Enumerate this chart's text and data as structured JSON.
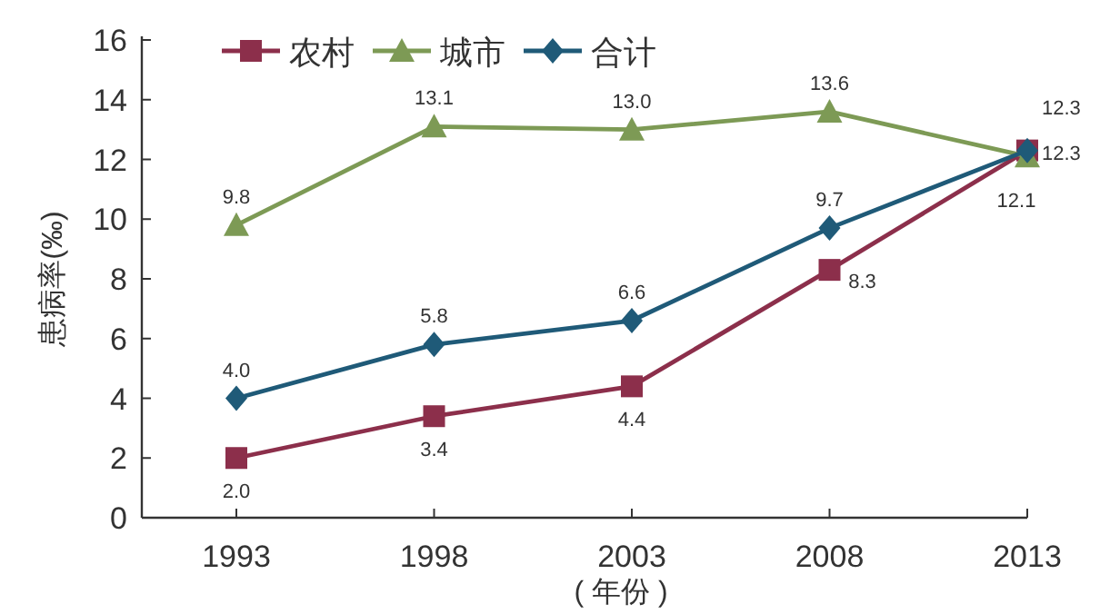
{
  "chart_data": {
    "type": "line",
    "categories": [
      "1993",
      "1998",
      "2003",
      "2008",
      "2013"
    ],
    "series": [
      {
        "name": "农村",
        "color": "#8c2f4b",
        "marker": "square",
        "values": [
          2.0,
          3.4,
          4.4,
          8.3,
          12.3
        ],
        "value_labels": [
          "2.0",
          "3.4",
          "4.4",
          "8.3",
          "12.3"
        ]
      },
      {
        "name": "城市",
        "color": "#7d9a55",
        "marker": "triangle",
        "values": [
          9.8,
          13.1,
          13.0,
          13.6,
          12.1
        ],
        "value_labels": [
          "9.8",
          "13.1",
          "13.0",
          "13.6",
          "12.1"
        ]
      },
      {
        "name": "合计",
        "color": "#1f5a78",
        "marker": "diamond",
        "values": [
          4.0,
          5.8,
          6.6,
          9.7,
          12.3
        ],
        "value_labels": [
          "4.0",
          "5.8",
          "6.6",
          "9.7",
          "12.3"
        ]
      }
    ],
    "ylim": [
      0,
      16
    ],
    "yticks": [
      0,
      2,
      4,
      6,
      8,
      10,
      12,
      14,
      16
    ],
    "ylabel": "患病率(‰)",
    "xlabel": "( 年份 )",
    "grid": false,
    "legend": "top left"
  }
}
